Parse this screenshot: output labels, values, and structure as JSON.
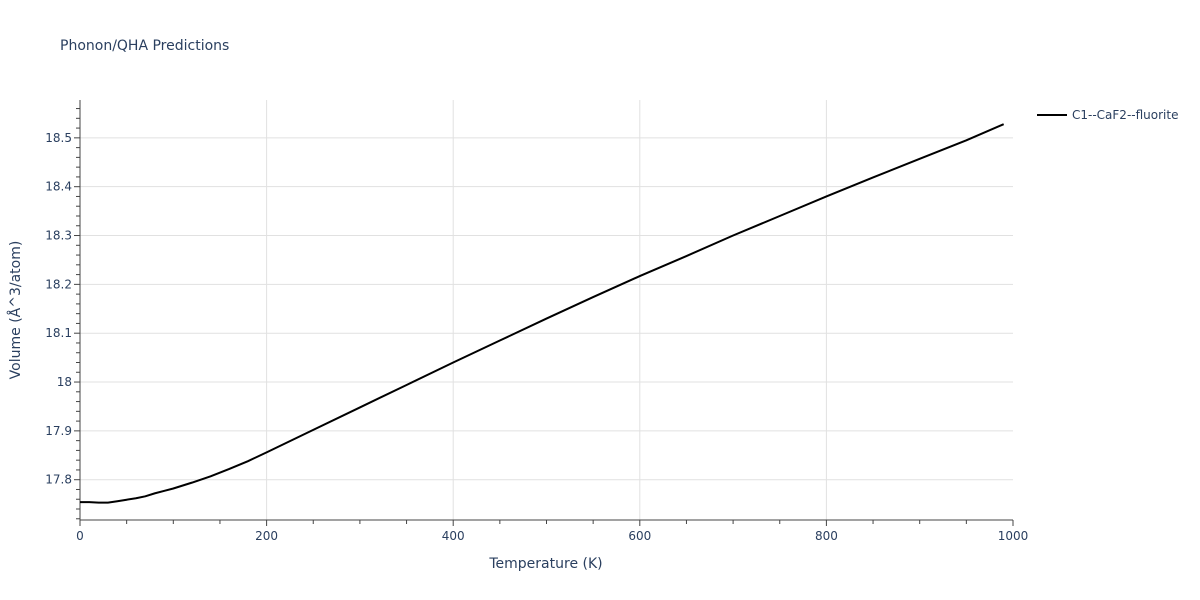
{
  "chart_data": {
    "type": "line",
    "title": "Phonon/QHA Predictions",
    "xlabel": "Temperature (K)",
    "ylabel": "Volume (Å^3/atom)",
    "xlim": [
      0,
      1000
    ],
    "ylim": [
      17.7175,
      18.5775
    ],
    "xticks": [
      0,
      200,
      400,
      600,
      800,
      1000
    ],
    "xtick_labels": [
      "0",
      "200",
      "400",
      "600",
      "800",
      "1000"
    ],
    "yticks": [
      17.8,
      17.9,
      18.0,
      18.1,
      18.2,
      18.3,
      18.4,
      18.5
    ],
    "ytick_labels": [
      "17.8",
      "17.9",
      "18",
      "18.1",
      "18.2",
      "18.3",
      "18.4",
      "18.5"
    ],
    "grid": true,
    "legend_position": "top-right",
    "series": [
      {
        "name": "C1--CaF2--fluorite",
        "color": "#000000",
        "x": [
          0,
          10,
          20,
          30,
          40,
          50,
          60,
          70,
          80,
          90,
          100,
          120,
          140,
          160,
          180,
          200,
          250,
          300,
          350,
          400,
          450,
          500,
          550,
          600,
          650,
          700,
          750,
          800,
          850,
          900,
          950,
          990
        ],
        "y": [
          17.754,
          17.754,
          17.753,
          17.753,
          17.756,
          17.759,
          17.762,
          17.766,
          17.772,
          17.777,
          17.782,
          17.794,
          17.807,
          17.822,
          17.838,
          17.856,
          17.902,
          17.948,
          17.994,
          18.04,
          18.085,
          18.13,
          18.174,
          18.217,
          18.258,
          18.3,
          18.34,
          18.38,
          18.419,
          18.457,
          18.495,
          18.528
        ]
      }
    ]
  }
}
